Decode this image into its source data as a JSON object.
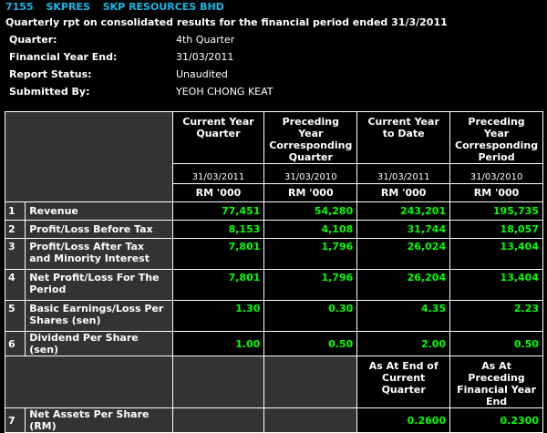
{
  "header": {
    "code": "7155",
    "ticker": "SKPRES",
    "company": "SKP RESOURCES BHD",
    "title": "Quarterly rpt on consolidated results for the financial period ended 31/3/2011"
  },
  "info": [
    {
      "label": "Quarter:",
      "value": "4th Quarter"
    },
    {
      "label": "Financial Year End:",
      "value": "31/03/2011"
    },
    {
      "label": "Report Status:",
      "value": "Unaudited"
    },
    {
      "label": "Submitted By:",
      "value": "YEOH CHONG KEAT"
    }
  ],
  "columns": [
    {
      "header": "Current Year Quarter",
      "date": "31/03/2011",
      "unit": "RM '000"
    },
    {
      "header": "Preceding Year Corresponding Quarter",
      "date": "31/03/2010",
      "unit": "RM '000"
    },
    {
      "header": "Current Year to Date",
      "date": "31/03/2011",
      "unit": "RM '000"
    },
    {
      "header": "Preceding Year Corresponding Period",
      "date": "31/03/2010",
      "unit": "RM '000"
    }
  ],
  "rows": [
    {
      "num": "1",
      "label": "Revenue",
      "values": [
        "77,451",
        "54,280",
        "243,201",
        "195,735"
      ]
    },
    {
      "num": "2",
      "label": "Profit/Loss Before Tax",
      "values": [
        "8,153",
        "4,108",
        "31,744",
        "18,057"
      ]
    },
    {
      "num": "3",
      "label": "Profit/Loss After Tax and Minority Interest",
      "values": [
        "7,801",
        "1,796",
        "26,024",
        "13,404"
      ]
    },
    {
      "num": "4",
      "label": "Net Profit/Loss For The Period",
      "values": [
        "7,801",
        "1,796",
        "26,204",
        "13,404"
      ]
    },
    {
      "num": "5",
      "label": "Basic Earnings/Loss Per Shares (sen)",
      "values": [
        "1.30",
        "0.30",
        "4.35",
        "2.23"
      ]
    },
    {
      "num": "6",
      "label": "Dividend Per Share (sen)",
      "values": [
        "1.00",
        "0.50",
        "2.00",
        "0.50"
      ]
    }
  ],
  "nav_header": {
    "col1": "As At End of Current Quarter",
    "col2": "As At Preceding Financial Year End"
  },
  "nav_row": {
    "num": "7",
    "label": "Net Assets Per Share (RM)",
    "values": [
      "0.2600",
      "0.2300"
    ]
  },
  "colors": {
    "title": "#17b8e6",
    "value": "#00ff00",
    "label_bg": "#333333"
  }
}
